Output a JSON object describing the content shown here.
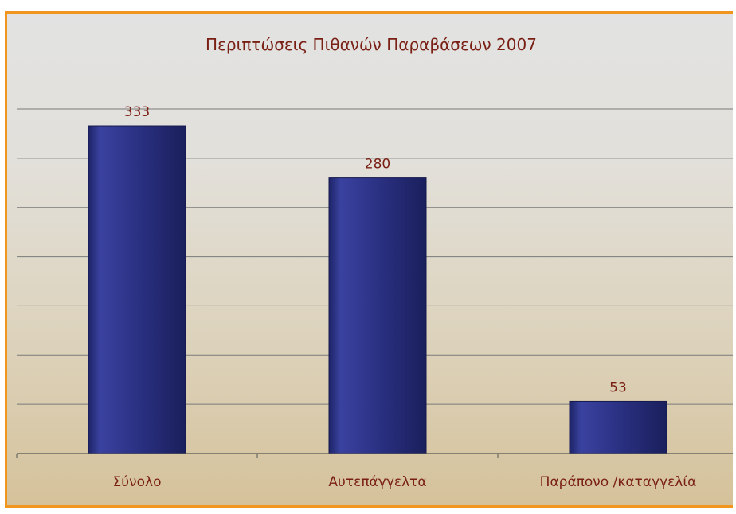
{
  "chart_data": {
    "type": "bar",
    "title": "Περιπτώσεις Πιθανών Παραβάσεων 2007",
    "categories": [
      "Σύνολο",
      "Αυτεπάγγελτα",
      "Παράπονο /καταγγελία"
    ],
    "values": [
      333,
      280,
      53
    ],
    "data_labels": [
      "333",
      "280",
      "53"
    ],
    "ylim": [
      0,
      350
    ],
    "y_gridline_step": 50,
    "grid": true,
    "legend": "none",
    "colors": {
      "bar": "#2b3183",
      "bar_highlight": "#4a52a8",
      "text": "#7a1f14",
      "frame": "#f0961e",
      "grid": "#7a7a7a"
    }
  }
}
